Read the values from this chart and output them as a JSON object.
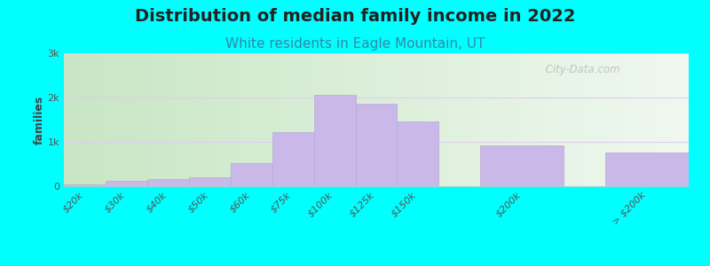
{
  "title": "Distribution of median family income in 2022",
  "subtitle": "White residents in Eagle Mountain, UT",
  "ylabel": "families",
  "background_color": "#00FFFF",
  "plot_bg_gradient_left": "#c8e6c4",
  "plot_bg_gradient_right": "#f0f8f0",
  "bar_color": "#c9b8e8",
  "bar_edge_color": "#b8a8d8",
  "grid_color": "#ddd0ee",
  "title_color": "#222222",
  "subtitle_color": "#3388aa",
  "ylabel_color": "#444444",
  "categories": [
    "$20k",
    "$30k",
    "$40k",
    "$50k",
    "$60k",
    "$75k",
    "$100k",
    "$125k",
    "$150k",
    "$200k",
    "> $200k"
  ],
  "values": [
    50,
    120,
    170,
    210,
    530,
    1220,
    2060,
    1870,
    1470,
    920,
    760
  ],
  "bar_lefts": [
    0,
    1,
    2,
    3,
    4,
    5,
    6,
    7,
    8,
    10,
    13
  ],
  "bar_widths": [
    1,
    1,
    1,
    1,
    1,
    1,
    1,
    1,
    1,
    2,
    2
  ],
  "ylim": [
    0,
    3000
  ],
  "yticks": [
    0,
    1000,
    2000,
    3000
  ],
  "ytick_labels": [
    "0",
    "1k",
    "2k",
    "3k"
  ],
  "watermark": "  City-Data.com",
  "title_fontsize": 14,
  "subtitle_fontsize": 11,
  "ylabel_fontsize": 9,
  "tick_fontsize": 8
}
